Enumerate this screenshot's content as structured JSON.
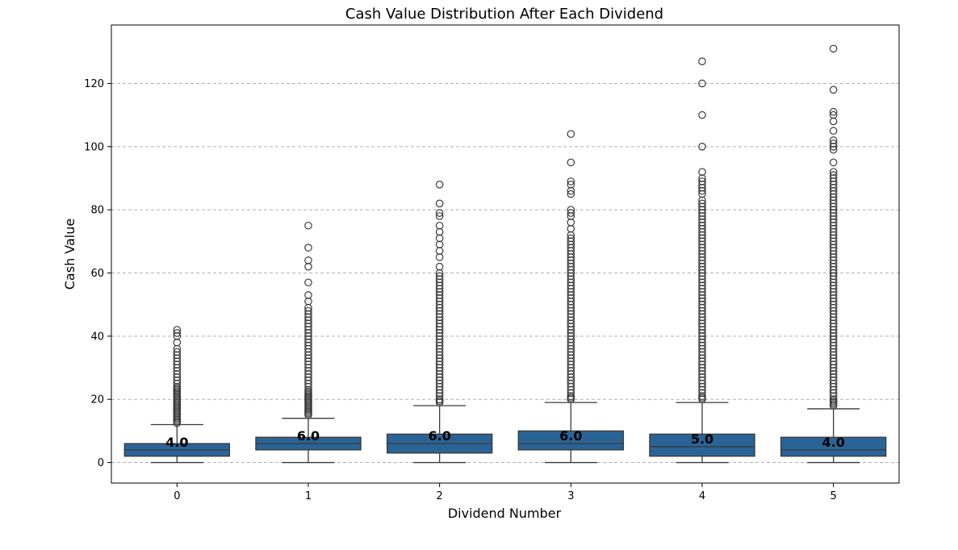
{
  "chart_data": {
    "type": "box",
    "title": "Cash Value Distribution After Each Dividend",
    "xlabel": "Dividend Number",
    "ylabel": "Cash Value",
    "categories": [
      "0",
      "1",
      "2",
      "3",
      "4",
      "5"
    ],
    "ylim": [
      -6.5,
      138.5
    ],
    "yticks": [
      0,
      20,
      40,
      60,
      80,
      100,
      120
    ],
    "grid": "y-dashed",
    "box_color": "#2a6496",
    "boxes": [
      {
        "category": "0",
        "whisker_low": 0,
        "q1": 2,
        "median": 4,
        "q3": 6,
        "whisker_high": 12,
        "median_label": "4.0",
        "outliers": [
          12.5,
          13,
          13.5,
          14,
          14.5,
          15,
          15.5,
          16,
          16.5,
          17,
          17.5,
          18,
          18.5,
          19,
          19.5,
          20,
          20.5,
          21,
          21.5,
          22,
          22.5,
          23,
          23.5,
          24,
          25,
          26,
          27,
          28,
          29,
          30,
          31,
          32,
          33,
          34,
          35,
          36,
          38,
          40,
          41,
          42
        ]
      },
      {
        "category": "1",
        "whisker_low": 0,
        "q1": 4,
        "median": 6,
        "q3": 8,
        "whisker_high": 14,
        "median_label": "6.0",
        "outliers": [
          15,
          15.5,
          16,
          16.5,
          17,
          17.5,
          18,
          18.5,
          19,
          19.5,
          20,
          20.5,
          21,
          21.5,
          22,
          22.5,
          23,
          24,
          25,
          26,
          27,
          28,
          29,
          30,
          31,
          32,
          33,
          34,
          35,
          36,
          37,
          38,
          39,
          40,
          41,
          42,
          43,
          44,
          45,
          46,
          47,
          48,
          49,
          51,
          53,
          57,
          62,
          64,
          68,
          75
        ]
      },
      {
        "category": "2",
        "whisker_low": 0,
        "q1": 3,
        "median": 6,
        "q3": 9,
        "whisker_high": 18,
        "median_label": "6.0",
        "outliers": [
          19,
          19.5,
          20,
          21,
          22,
          23,
          24,
          25,
          26,
          27,
          28,
          29,
          30,
          31,
          32,
          33,
          34,
          35,
          36,
          37,
          38,
          39,
          40,
          41,
          42,
          43,
          44,
          45,
          46,
          47,
          48,
          49,
          50,
          51,
          52,
          53,
          54,
          55,
          56,
          57,
          58,
          59,
          60,
          62,
          65,
          67,
          69,
          71,
          73,
          75,
          78,
          79,
          82,
          88
        ]
      },
      {
        "category": "3",
        "whisker_low": 0,
        "q1": 4,
        "median": 6,
        "q3": 10,
        "whisker_high": 19,
        "median_label": "6.0",
        "outliers": [
          20,
          20.5,
          21,
          22,
          23,
          24,
          25,
          26,
          27,
          28,
          29,
          30,
          31,
          32,
          33,
          34,
          35,
          36,
          37,
          38,
          39,
          40,
          41,
          42,
          43,
          44,
          45,
          46,
          47,
          48,
          49,
          50,
          51,
          52,
          53,
          54,
          55,
          56,
          57,
          58,
          59,
          60,
          61,
          62,
          63,
          64,
          65,
          66,
          67,
          68,
          69,
          70,
          71,
          72,
          74,
          76,
          78,
          79,
          80,
          85,
          86,
          88,
          89,
          95,
          104
        ]
      },
      {
        "category": "4",
        "whisker_low": 0,
        "q1": 2,
        "median": 5,
        "q3": 9,
        "whisker_high": 19,
        "median_label": "5.0",
        "outliers": [
          20,
          20.5,
          21,
          22,
          23,
          24,
          25,
          26,
          27,
          28,
          29,
          30,
          31,
          32,
          33,
          34,
          35,
          36,
          37,
          38,
          39,
          40,
          41,
          42,
          43,
          44,
          45,
          46,
          47,
          48,
          49,
          50,
          51,
          52,
          53,
          54,
          55,
          56,
          57,
          58,
          59,
          60,
          61,
          62,
          63,
          64,
          65,
          66,
          67,
          68,
          69,
          70,
          71,
          72,
          73,
          74,
          75,
          76,
          77,
          78,
          79,
          80,
          81,
          82,
          83,
          85,
          86,
          87,
          88,
          89,
          90,
          92,
          100,
          110,
          120,
          127
        ]
      },
      {
        "category": "5",
        "whisker_low": 0,
        "q1": 2,
        "median": 4,
        "q3": 8,
        "whisker_high": 17,
        "median_label": "4.0",
        "outliers": [
          18,
          18.5,
          19,
          19.5,
          20,
          21,
          22,
          23,
          24,
          25,
          26,
          27,
          28,
          29,
          30,
          31,
          32,
          33,
          34,
          35,
          36,
          37,
          38,
          39,
          40,
          41,
          42,
          43,
          44,
          45,
          46,
          47,
          48,
          49,
          50,
          51,
          52,
          53,
          54,
          55,
          56,
          57,
          58,
          59,
          60,
          61,
          62,
          63,
          64,
          65,
          66,
          67,
          68,
          69,
          70,
          71,
          72,
          73,
          74,
          75,
          76,
          77,
          78,
          79,
          80,
          81,
          82,
          83,
          84,
          85,
          86,
          87,
          88,
          89,
          90,
          91,
          92,
          95,
          99,
          100,
          101,
          102,
          105,
          108,
          110,
          111,
          118,
          131
        ]
      }
    ]
  }
}
